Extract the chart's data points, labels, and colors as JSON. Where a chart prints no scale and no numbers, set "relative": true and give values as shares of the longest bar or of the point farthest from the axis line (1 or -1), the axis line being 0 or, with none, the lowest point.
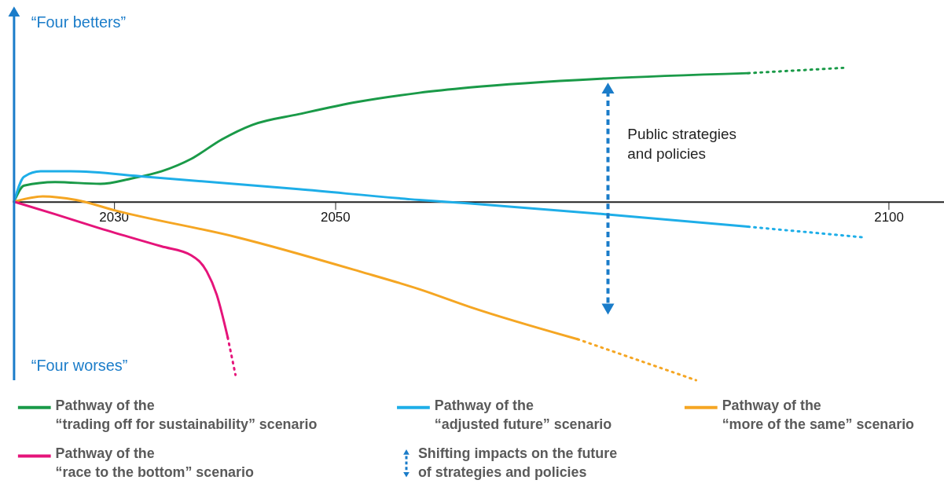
{
  "chart_data": {
    "type": "line",
    "relative": true,
    "xlim": [
      2021,
      2105
    ],
    "xticks": [
      2030,
      2050,
      2100
    ],
    "legend": "bottom",
    "line_style": "solid",
    "annotations": [
      "“Four betters”",
      "“Four worses”",
      "Public strategies\nand policies",
      "Shifting impacts on the future\nof strategies and policies"
    ],
    "series": [
      {
        "name": "Pathway of the\n“trading off for sustainability” scenario",
        "color": "#1a9a48",
        "x": [
          2021.0,
          2021.9,
          2024.7,
          2028.8,
          2031.6,
          2034.3,
          2037.0,
          2039.8,
          2042.5,
          2046.7,
          2052.1,
          2057.6,
          2062.2,
          2074.4,
          2087.3
        ],
        "values": [
          0,
          0.09,
          0.11,
          0.1,
          0.13,
          0.17,
          0.24,
          0.35,
          0.43,
          0.49,
          0.56,
          0.61,
          0.64,
          0.69,
          0.72
        ]
      },
      {
        "name": "Pathway of the\n“adjusted future” scenario",
        "color": "#1eaee8",
        "x": [
          2021.0,
          2021.9,
          2023.4,
          2026.1,
          2032.9,
          2046.7,
          2057.6,
          2062.2,
          2074.4,
          2087.3
        ],
        "values": [
          0,
          0.14,
          0.17,
          0.17,
          0.14,
          0.07,
          0.01,
          -0.01,
          -0.07,
          -0.14
        ]
      },
      {
        "name": "Pathway of the\n“more of the same” scenario",
        "color": "#f5a623",
        "x": [
          2021.0,
          2023.6,
          2026.6,
          2030.2,
          2041.2,
          2052.2,
          2057.6,
          2062.2,
          2071.9
        ],
        "values": [
          0,
          0.03,
          0.01,
          -0.05,
          -0.2,
          -0.39,
          -0.49,
          -0.59,
          -0.77
        ]
      },
      {
        "name": "Pathway of the\n“race to the bottom” scenario",
        "color": "#e5147a",
        "x": [
          2021.0,
          2024.7,
          2028.8,
          2034.3,
          2037.0,
          2038.4,
          2039.3,
          2040.3
        ],
        "values": [
          0,
          -0.07,
          -0.15,
          -0.25,
          -0.3,
          -0.39,
          -0.52,
          -0.76
        ]
      },
      {
        "color": "#1a9a48",
        "line_style": "dotted",
        "x": [
          2087.3,
          2096.0
        ],
        "values": [
          0.72,
          0.75
        ]
      },
      {
        "color": "#1eaee8",
        "line_style": "dotted",
        "x": [
          2087.3,
          2097.8
        ],
        "values": [
          -0.14,
          -0.2
        ]
      },
      {
        "color": "#f5a623",
        "line_style": "dotted",
        "x": [
          2071.9,
          2082.6
        ],
        "values": [
          -0.77,
          -1.0
        ]
      },
      {
        "color": "#e5147a",
        "line_style": "dotted",
        "x": [
          2040.3,
          2041.0
        ],
        "values": [
          -0.76,
          -0.97
        ]
      }
    ]
  }
}
